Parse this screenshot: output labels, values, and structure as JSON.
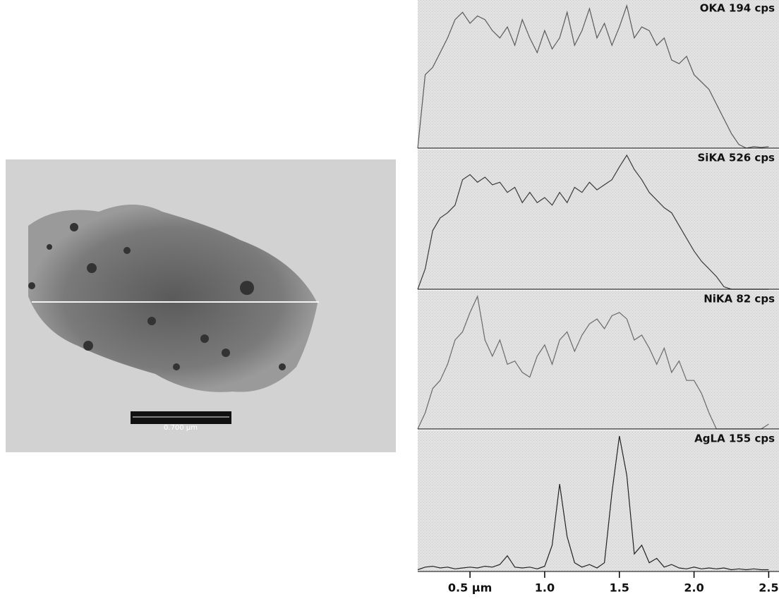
{
  "image": {
    "scale_label": "0.700 µm"
  },
  "chart_data": [
    {
      "type": "line",
      "title": "OKA 194 cps",
      "color": "#5a5a5a",
      "xlim": [
        0.15,
        2.55
      ],
      "ylim": [
        0,
        194
      ],
      "x": [
        0.15,
        0.2,
        0.25,
        0.3,
        0.35,
        0.4,
        0.45,
        0.5,
        0.55,
        0.6,
        0.65,
        0.7,
        0.75,
        0.8,
        0.85,
        0.9,
        0.95,
        1.0,
        1.05,
        1.1,
        1.15,
        1.2,
        1.25,
        1.3,
        1.35,
        1.4,
        1.45,
        1.5,
        1.55,
        1.6,
        1.65,
        1.7,
        1.75,
        1.8,
        1.85,
        1.9,
        1.95,
        2.0,
        2.05,
        2.1,
        2.15,
        2.2,
        2.25,
        2.3,
        2.35,
        2.4,
        2.45,
        2.5
      ],
      "values": [
        0,
        100,
        110,
        130,
        150,
        175,
        185,
        170,
        180,
        175,
        160,
        150,
        165,
        140,
        175,
        150,
        130,
        160,
        135,
        150,
        185,
        140,
        160,
        190,
        150,
        170,
        140,
        165,
        194,
        150,
        165,
        160,
        140,
        150,
        120,
        115,
        125,
        100,
        90,
        80,
        60,
        40,
        20,
        5,
        0,
        2,
        1,
        2
      ]
    },
    {
      "type": "line",
      "title": "SiKA 526 cps",
      "color": "#3a3a3a",
      "xlim": [
        0.15,
        2.55
      ],
      "ylim": [
        0,
        526
      ],
      "x": [
        0.15,
        0.2,
        0.25,
        0.3,
        0.35,
        0.4,
        0.45,
        0.5,
        0.55,
        0.6,
        0.65,
        0.7,
        0.75,
        0.8,
        0.85,
        0.9,
        0.95,
        1.0,
        1.05,
        1.1,
        1.15,
        1.2,
        1.25,
        1.3,
        1.35,
        1.4,
        1.45,
        1.5,
        1.55,
        1.6,
        1.65,
        1.7,
        1.75,
        1.8,
        1.85,
        1.9,
        1.95,
        2.0,
        2.05,
        2.1,
        2.15,
        2.2,
        2.25,
        2.3,
        2.35,
        2.4,
        2.45,
        2.5
      ],
      "values": [
        0,
        80,
        230,
        280,
        300,
        330,
        430,
        450,
        420,
        440,
        410,
        420,
        380,
        400,
        340,
        380,
        340,
        360,
        330,
        380,
        340,
        400,
        380,
        420,
        390,
        410,
        430,
        480,
        526,
        470,
        430,
        380,
        350,
        320,
        300,
        250,
        200,
        150,
        110,
        80,
        50,
        10,
        0,
        0,
        0,
        0,
        0,
        0
      ]
    },
    {
      "type": "line",
      "title": "NiKA 82 cps",
      "color": "#6a6a6a",
      "xlim": [
        0.15,
        2.55
      ],
      "ylim": [
        0,
        82
      ],
      "x": [
        0.15,
        0.2,
        0.25,
        0.3,
        0.35,
        0.4,
        0.45,
        0.5,
        0.55,
        0.6,
        0.65,
        0.7,
        0.75,
        0.8,
        0.85,
        0.9,
        0.95,
        1.0,
        1.05,
        1.1,
        1.15,
        1.2,
        1.25,
        1.3,
        1.35,
        1.4,
        1.45,
        1.5,
        1.55,
        1.6,
        1.65,
        1.7,
        1.75,
        1.8,
        1.85,
        1.9,
        1.95,
        2.0,
        2.05,
        2.1,
        2.15,
        2.2,
        2.25,
        2.3,
        2.35,
        2.4,
        2.45,
        2.5
      ],
      "values": [
        0,
        10,
        25,
        30,
        40,
        55,
        60,
        72,
        82,
        55,
        45,
        55,
        40,
        42,
        35,
        32,
        45,
        52,
        40,
        55,
        60,
        48,
        58,
        65,
        68,
        62,
        70,
        72,
        68,
        55,
        58,
        50,
        40,
        50,
        35,
        42,
        30,
        30,
        22,
        10,
        0,
        0,
        0,
        0,
        0,
        0,
        0,
        3
      ]
    },
    {
      "type": "line",
      "title": "AgLA 155 cps",
      "color": "#222222",
      "xlim": [
        0.15,
        2.55
      ],
      "ylim": [
        0,
        155
      ],
      "x": [
        0.15,
        0.2,
        0.25,
        0.3,
        0.35,
        0.4,
        0.45,
        0.5,
        0.55,
        0.6,
        0.65,
        0.7,
        0.75,
        0.8,
        0.85,
        0.9,
        0.95,
        1.0,
        1.05,
        1.1,
        1.15,
        1.2,
        1.25,
        1.3,
        1.35,
        1.4,
        1.45,
        1.5,
        1.55,
        1.6,
        1.65,
        1.7,
        1.75,
        1.8,
        1.85,
        1.9,
        1.95,
        2.0,
        2.05,
        2.1,
        2.15,
        2.2,
        2.25,
        2.3,
        2.35,
        2.4,
        2.45,
        2.5
      ],
      "values": [
        2,
        5,
        6,
        4,
        5,
        3,
        4,
        5,
        4,
        6,
        5,
        8,
        18,
        5,
        4,
        5,
        3,
        6,
        30,
        100,
        40,
        10,
        5,
        8,
        4,
        10,
        90,
        155,
        110,
        20,
        30,
        10,
        15,
        5,
        8,
        4,
        3,
        5,
        3,
        4,
        3,
        4,
        2,
        3,
        2,
        3,
        2,
        2
      ],
      "xticks": [
        {
          "value": 0.5,
          "label": "0.5 µm"
        },
        {
          "value": 1,
          "label": "1.0"
        },
        1.5,
        {
          "value": 2,
          "label": "2.0"
        },
        2.5
      ]
    }
  ]
}
